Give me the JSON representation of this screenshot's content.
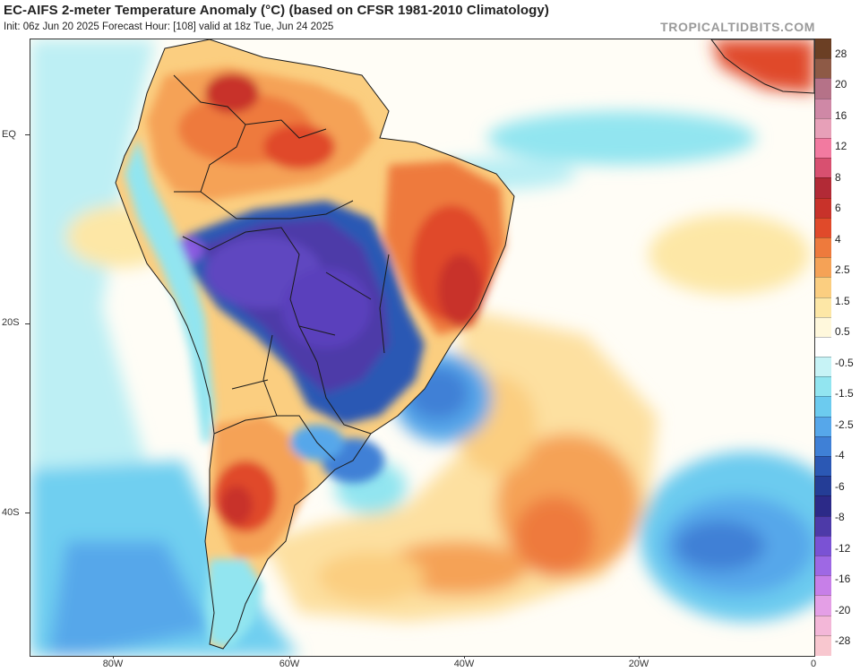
{
  "header": {
    "title": "EC-AIFS 2-meter Temperature Anomaly (°C) (based on CFSR 1981-2010 Climatology)",
    "subtitle": "Init: 06z Jun 20 2025   Forecast Hour: [108]   valid at 18z Tue, Jun 24 2025",
    "credit": "TROPICALTIDBITS.COM"
  },
  "axes": {
    "y_labels": [
      "EQ",
      "20S",
      "40S"
    ],
    "x_labels": [
      "80W",
      "60W",
      "40W",
      "20W",
      "0"
    ]
  },
  "legend": {
    "labels": [
      "28",
      "20",
      "16",
      "12",
      "8",
      "6",
      "4",
      "2.5",
      "1.5",
      "0.5",
      "-0.5",
      "-1.5",
      "-2.5",
      "-4",
      "-6",
      "-8",
      "-12",
      "-16",
      "-20",
      "-28"
    ],
    "colors": [
      "#6b3f24",
      "#8e5a46",
      "#b57288",
      "#cf88a6",
      "#e7a0b8",
      "#f27aa0",
      "#d85070",
      "#b22a36",
      "#c8322a",
      "#e04a2a",
      "#ee7a3c",
      "#f5a256",
      "#fbce80",
      "#fde7a6",
      "#fff8dc",
      "#ffffff",
      "#c7f3f6",
      "#92e5f0",
      "#6ccbef",
      "#56a7ea",
      "#3f80d6",
      "#2b58b4",
      "#243d96",
      "#2c2a88",
      "#4d3aa8",
      "#7a52d4",
      "#9e68e4",
      "#c77fe8",
      "#e49fe6",
      "#f3b7d8",
      "#f8c7cf"
    ]
  },
  "map": {
    "description_colors": {
      "ocean": "#fffdf6",
      "warm_light": "#fde7a6",
      "warm_mid": "#f5a256",
      "warm_strong": "#e04a2a",
      "cool_light": "#92e5f0",
      "cool_mid": "#56a7ea",
      "cool_strong": "#2b58b4",
      "cold_extreme": "#5a40bc"
    }
  }
}
